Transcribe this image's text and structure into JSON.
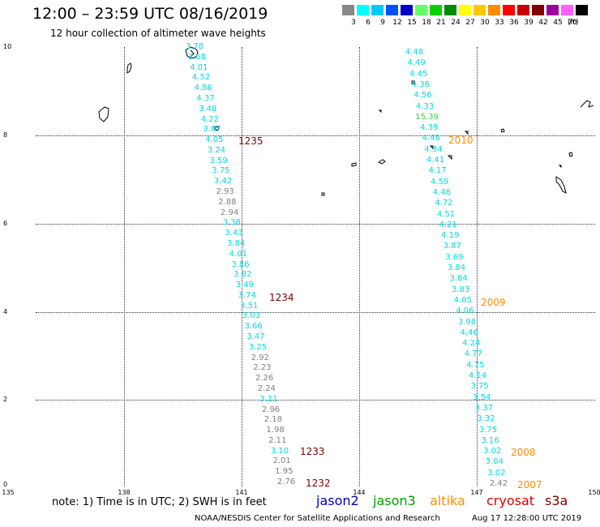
{
  "header": {
    "title": "12:00 – 23:59 UTC 08/16/2019",
    "subtitle": "12 hour collection of altimeter wave heights"
  },
  "colorbar": {
    "unit": "(ft)",
    "ticks": [
      "3",
      "6",
      "9",
      "12",
      "15",
      "18",
      "21",
      "24",
      "27",
      "30",
      "33",
      "36",
      "39",
      "42",
      "45",
      "70"
    ],
    "colors": [
      "#888888",
      "#00ffff",
      "#00c8ff",
      "#0050ff",
      "#0000c8",
      "#64ff64",
      "#00d200",
      "#008c00",
      "#ffff00",
      "#ffc800",
      "#ff8c00",
      "#ff0000",
      "#c80000",
      "#800000",
      "#a000a0",
      "#ff60ff",
      "#000000"
    ]
  },
  "axes": {
    "lat_labels": [
      "10",
      "8",
      "6",
      "4",
      "2",
      "0"
    ],
    "lon_labels": [
      "135",
      "138",
      "141",
      "144",
      "147",
      "150"
    ]
  },
  "tracks": {
    "left": [
      "3.78",
      "3.68",
      "4.01",
      "4.52",
      "4.86",
      "4.37",
      "3.48",
      "4.22",
      "3.87",
      "4.05",
      "3.24",
      "3.59",
      "3.75",
      "3.42",
      "2.93",
      "2.88",
      "2.94",
      "3.38",
      "3.43",
      "3.84",
      "4.01",
      "3.86",
      "3.82",
      "3.49",
      "3.74",
      "3.51",
      "3.03",
      "3.66",
      "3.47",
      "3.25",
      "2.92",
      "2.23",
      "2.26",
      "2.24",
      "3.11",
      "2.96",
      "2.18",
      "1.98",
      "2.11",
      "3.10",
      "2.01",
      "1.95",
      "2.76"
    ],
    "right": [
      "4.48",
      "4.49",
      "4.45",
      "4.36",
      "4.56",
      "4.33",
      "15.39",
      "4.39",
      "4.48",
      "4.34",
      "4.41",
      "4.17",
      "4.59",
      "4.48",
      "4.72",
      "4.51",
      "4.21",
      "4.19",
      "3.87",
      "3.69",
      "3.84",
      "3.84",
      "3.83",
      "4.05",
      "4.06",
      "3.98",
      "4.46",
      "4.24",
      "4.77",
      "4.75",
      "4.14",
      "3.75",
      "3.54",
      "3.37",
      "3.32",
      "3.75",
      "3.16",
      "3.02",
      "3.04",
      "3.02",
      "2.42"
    ]
  },
  "times": {
    "left": [
      "1235",
      "1234",
      "1233",
      "1232"
    ],
    "right": [
      "2010",
      "2009",
      "2008",
      "2007"
    ]
  },
  "footer": {
    "note": "note:  1)  Time is in UTC;  2)  SWH is in feet",
    "satellites": [
      "jason2",
      "jason3",
      "altika",
      "cryosat",
      "s3a"
    ],
    "credit": "NOAA/NESDIS Center for Satellite Applications and Research",
    "generated": "Aug 17 12:28:00 UTC 2019"
  }
}
